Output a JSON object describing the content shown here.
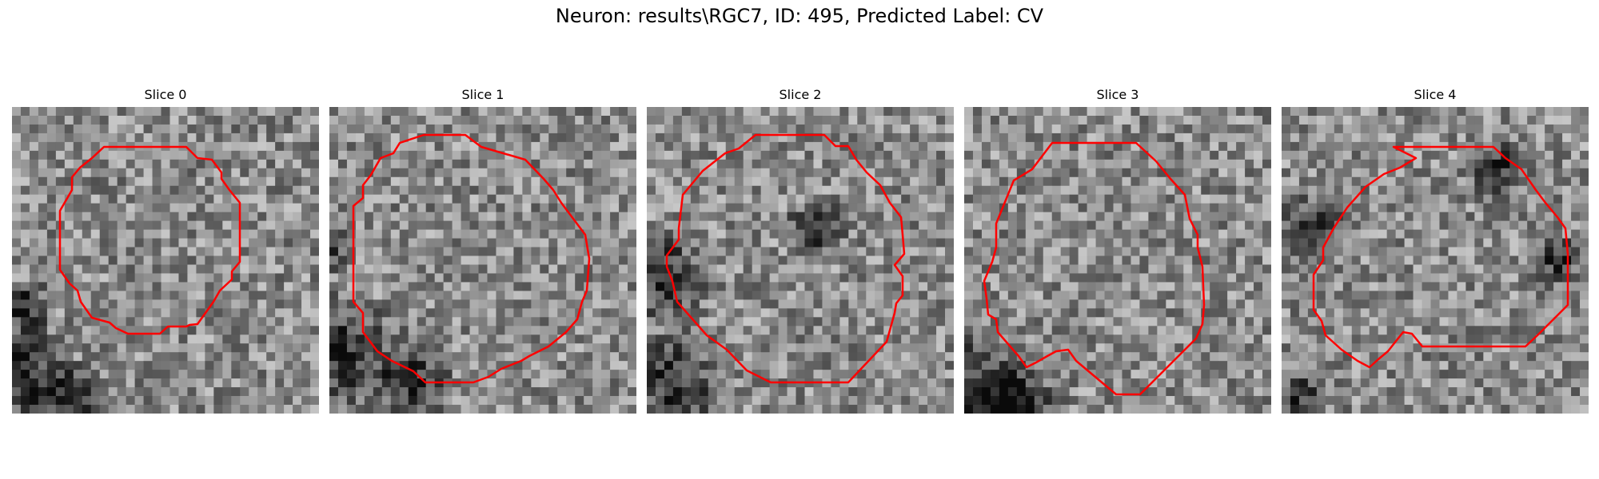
{
  "figure": {
    "title": "Neuron: results\\RGC7, ID: 495, Predicted Label: CV",
    "contour_color": "#ff0000"
  },
  "panels": [
    {
      "title": "Slice 0"
    },
    {
      "title": "Slice 1"
    },
    {
      "title": "Slice 2"
    },
    {
      "title": "Slice 3"
    },
    {
      "title": "Slice 4"
    }
  ]
}
